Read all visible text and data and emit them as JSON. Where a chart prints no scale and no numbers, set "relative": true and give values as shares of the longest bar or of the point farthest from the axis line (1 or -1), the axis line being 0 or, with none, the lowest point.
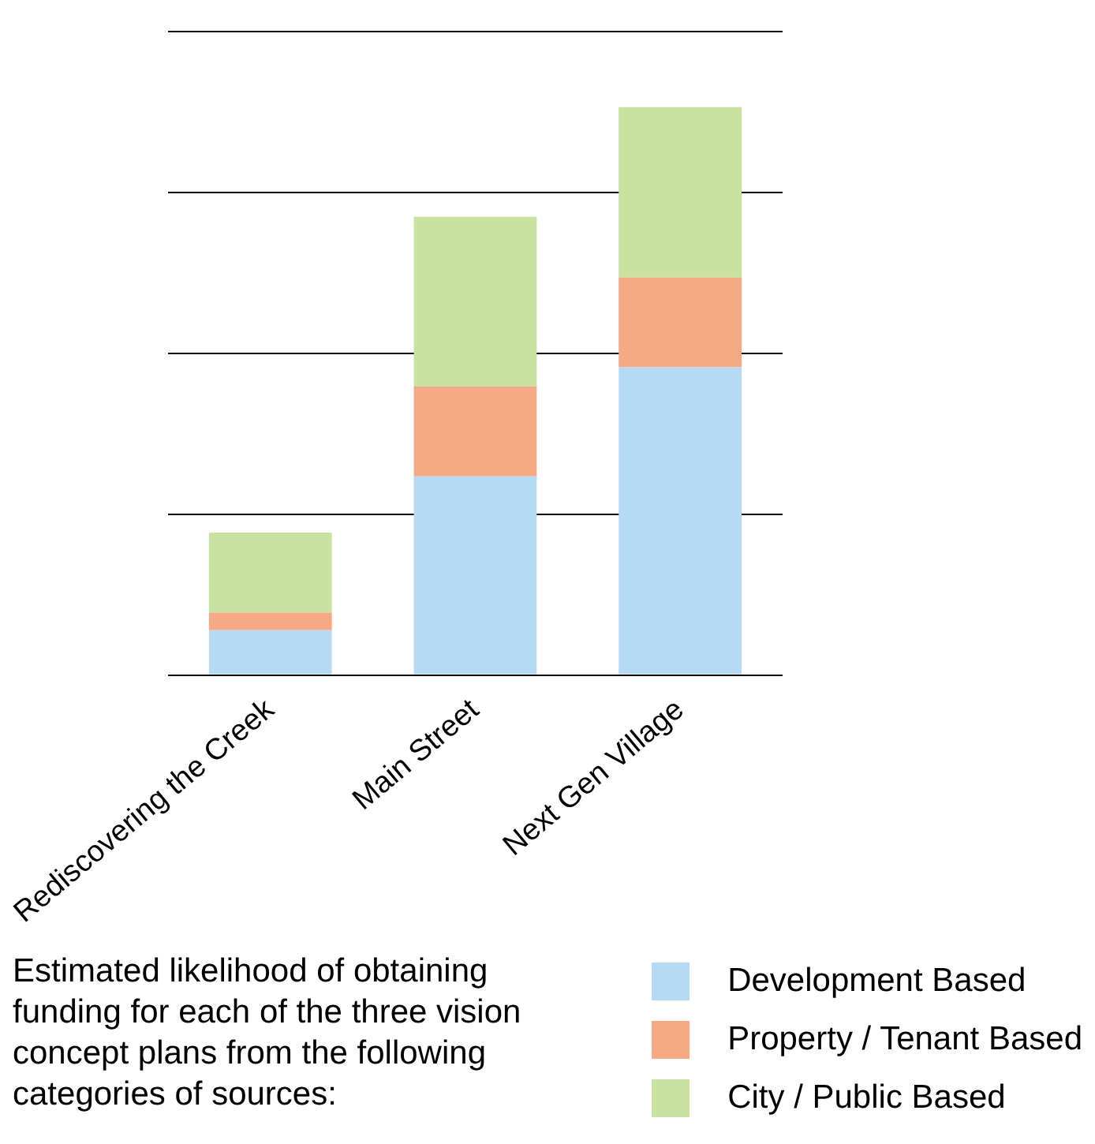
{
  "chart_data": {
    "type": "bar",
    "stacked": true,
    "relative": true,
    "grid": "y",
    "legend": "bottom right",
    "categories": [
      "Rediscovering the Creek",
      "Main Street",
      "Next Gen Village"
    ],
    "series": [
      {
        "name": "Development Based",
        "color": "#b7daf4",
        "values": [
          0.079,
          0.35,
          0.542
        ]
      },
      {
        "name": "Property / Tenant Based",
        "color": "#f7a884",
        "values": [
          0.031,
          0.158,
          0.158
        ]
      },
      {
        "name": "City / Public Based",
        "color": "#c8e2a0",
        "values": [
          0.141,
          0.299,
          0.3
        ]
      }
    ],
    "annotations": [
      "Estimated likelihood of obtaining funding for each of the three vision concept plans from the following categories of sources:"
    ]
  }
}
